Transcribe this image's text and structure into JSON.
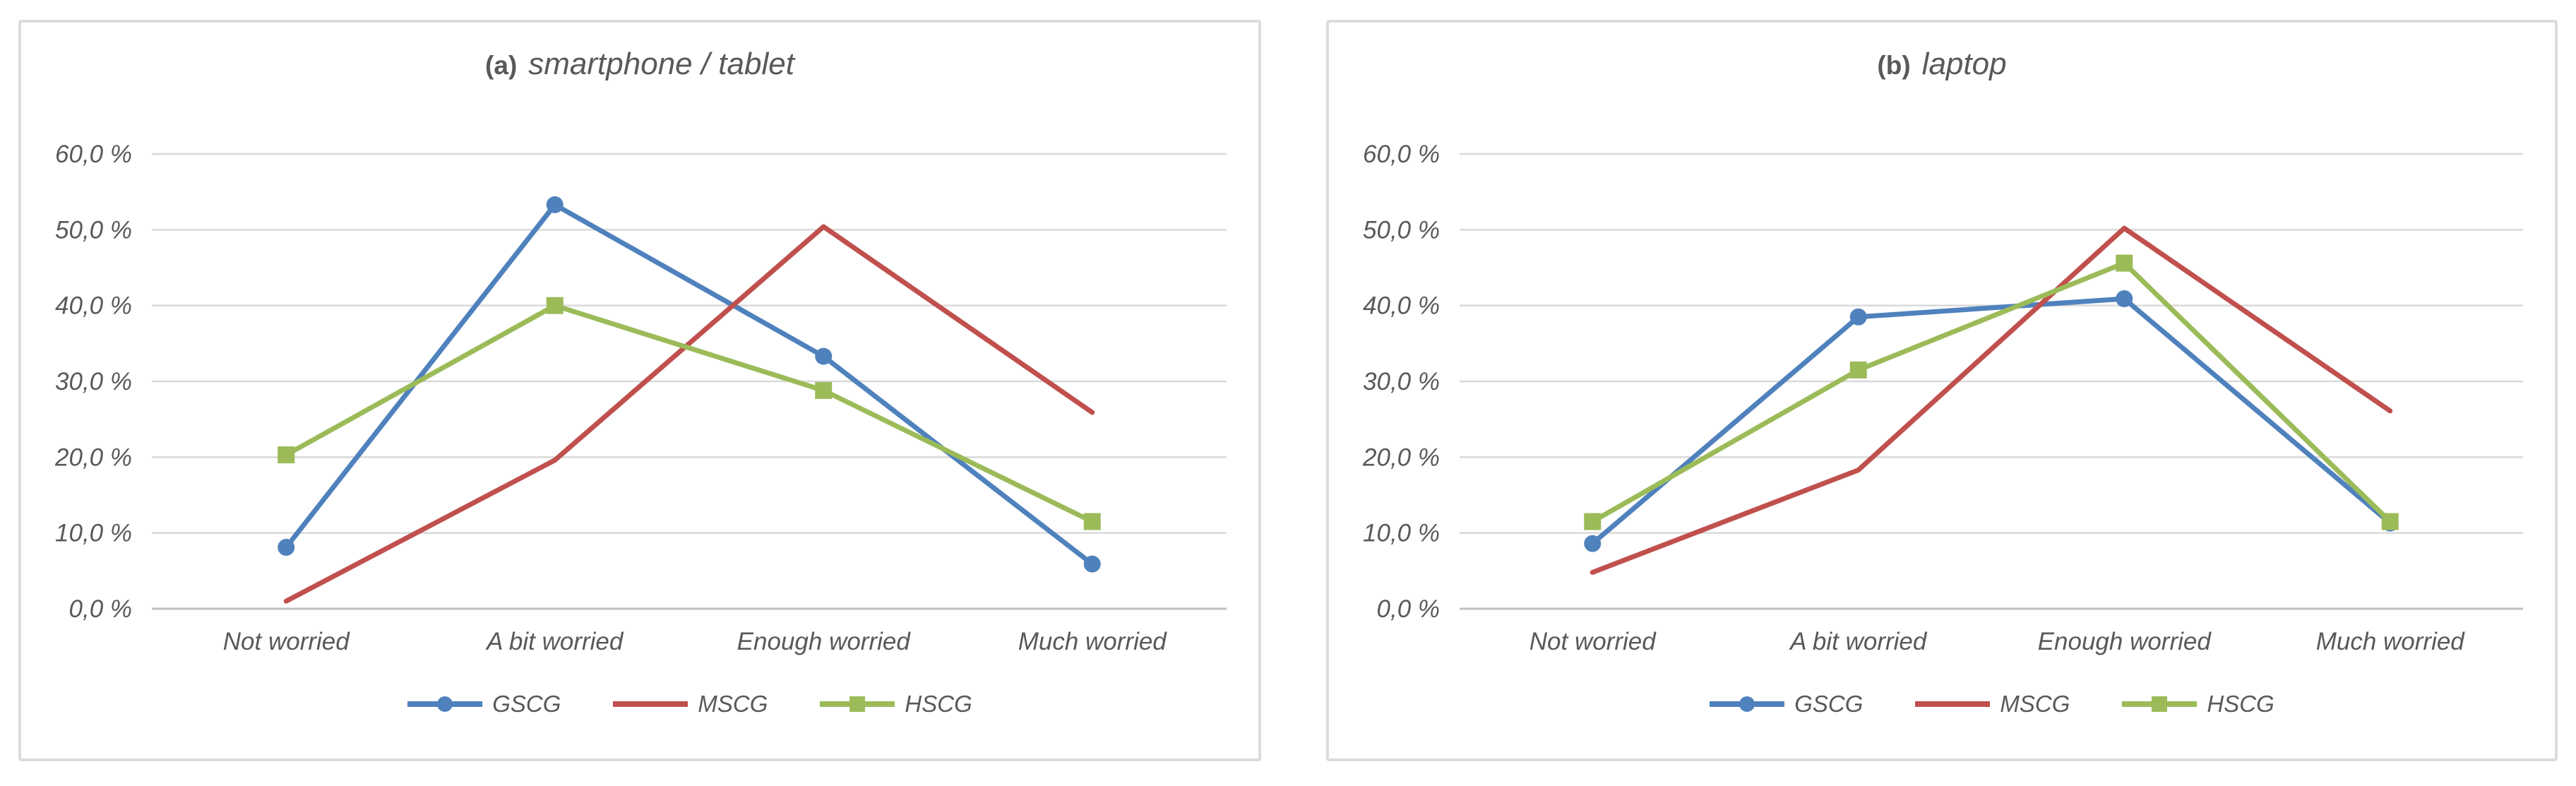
{
  "styles": {
    "grid_color": "#d9d9d9",
    "axis_color": "#bfbfbf",
    "text_color": "#595959",
    "panel_border_color": "#dcdcdc",
    "background": "#ffffff"
  },
  "chart_data": [
    {
      "type": "line",
      "panel_label": "(a)",
      "title": "smartphone / tablet",
      "xlabel": "",
      "ylabel": "",
      "categories": [
        "Not worried",
        "A bit worried",
        "Enough worried",
        "Much worried"
      ],
      "series": [
        {
          "name": "GSCG",
          "color": "#4F81BD",
          "marker": "circle",
          "values": [
            8.1,
            53.3,
            33.3,
            5.9
          ]
        },
        {
          "name": "MSCG",
          "color": "#C0504D",
          "marker": "none",
          "values": [
            1.0,
            19.6,
            50.4,
            25.9
          ]
        },
        {
          "name": "HSCG",
          "color": "#9BBB59",
          "marker": "square",
          "values": [
            20.3,
            40.0,
            28.8,
            11.5
          ]
        }
      ],
      "y_ticks": [
        "0,0 %",
        "10,0 %",
        "20,0 %",
        "30,0 %",
        "40,0 %",
        "50,0 %",
        "60,0 %"
      ],
      "ylim": [
        0,
        60
      ],
      "grid": true,
      "legend_position": "bottom"
    },
    {
      "type": "line",
      "panel_label": "(b)",
      "title": "laptop",
      "xlabel": "",
      "ylabel": "",
      "categories": [
        "Not worried",
        "A bit worried",
        "Enough worried",
        "Much worried"
      ],
      "series": [
        {
          "name": "GSCG",
          "color": "#4F81BD",
          "marker": "circle",
          "values": [
            8.6,
            38.5,
            40.9,
            11.3
          ]
        },
        {
          "name": "MSCG",
          "color": "#C0504D",
          "marker": "none",
          "values": [
            4.8,
            18.3,
            50.2,
            26.1
          ]
        },
        {
          "name": "HSCG",
          "color": "#9BBB59",
          "marker": "square",
          "values": [
            11.5,
            31.5,
            45.6,
            11.5
          ]
        }
      ],
      "y_ticks": [
        "0,0 %",
        "10,0 %",
        "20,0 %",
        "30,0 %",
        "40,0 %",
        "50,0 %",
        "60,0 %"
      ],
      "ylim": [
        0,
        60
      ],
      "grid": true,
      "legend_position": "bottom"
    }
  ]
}
